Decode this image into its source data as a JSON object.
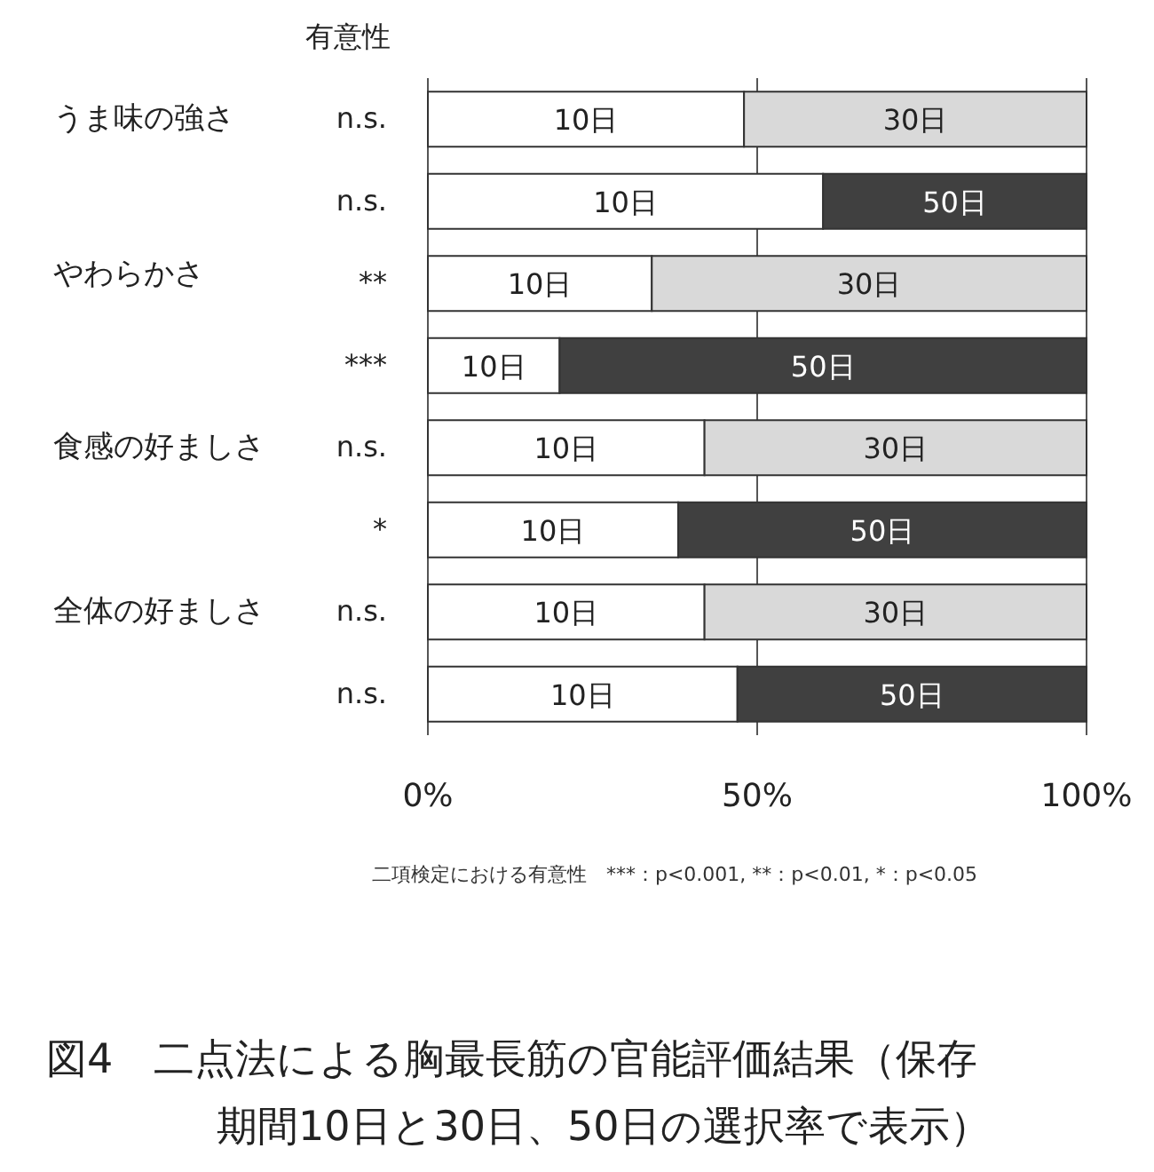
{
  "chart_data": {
    "type": "bar",
    "orientation": "horizontal",
    "stacked": true,
    "title": "図4　二点法による胸最長筋の官能評価結果（保存期間10日と30日、50日の選択率で表示）",
    "ylabel": "有意性",
    "categories": [
      "n.s.",
      "n.s.",
      "**",
      "***",
      "n.s.",
      "*",
      "n.s.",
      "n.s."
    ],
    "series": [
      {
        "name": "10日",
        "color": "#ffffff",
        "values": [
          48,
          60,
          34,
          20,
          42,
          38,
          42,
          47
        ]
      },
      {
        "name": "30日",
        "color": "#d9d9d9",
        "values": [
          52,
          null,
          66,
          null,
          58,
          null,
          58,
          null
        ]
      },
      {
        "name": "50日",
        "color": "#404040",
        "values": [
          null,
          40,
          null,
          80,
          null,
          62,
          null,
          53
        ]
      }
    ],
    "xlim": [
      0,
      100
    ],
    "xticks": [
      {
        "value": 0,
        "label": "0%"
      },
      {
        "value": 50,
        "label": "50%"
      },
      {
        "value": 100,
        "label": "100%"
      }
    ],
    "grid": "x",
    "annotations": [
      "うま味の強さ",
      "やわらかさ",
      "食感の好ましさ",
      "全体の好ましさ",
      "二項検定における有意性　***：p<0.001, **：p<0.01, *：p<0.05"
    ]
  }
}
